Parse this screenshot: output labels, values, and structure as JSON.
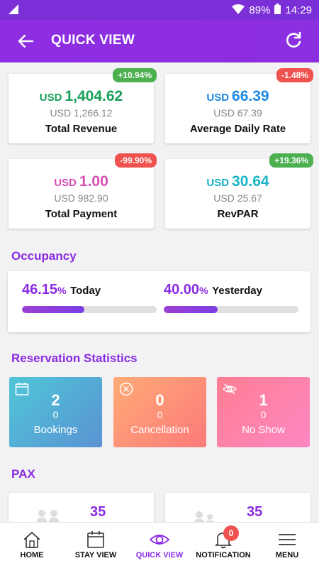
{
  "status_bar": {
    "battery": "89%",
    "time": "14:29"
  },
  "app_bar": {
    "title": "QUICK VIEW"
  },
  "kpis": [
    {
      "currency": "USD",
      "value": "1,404.62",
      "previous": "USD 1,266.12",
      "label": "Total Revenue",
      "change": "+10.94%",
      "trend": "pos",
      "color": "#1aa05a"
    },
    {
      "currency": "USD",
      "value": "66.39",
      "previous": "USD 67.39",
      "label": "Average Daily Rate",
      "change": "-1.48%",
      "trend": "neg",
      "color": "#1e88e5"
    },
    {
      "currency": "USD",
      "value": "1.00",
      "previous": "USD 982.90",
      "label": "Total Payment",
      "change": "-99.90%",
      "trend": "neg",
      "color": "#d64fb2"
    },
    {
      "currency": "USD",
      "value": "30.64",
      "previous": "USD 25.67",
      "label": "RevPAR",
      "change": "+19.36%",
      "trend": "pos",
      "color": "#17b3c6"
    }
  ],
  "occupancy": {
    "title": "Occupancy",
    "today": {
      "value": "46.15",
      "unit": "%",
      "label": "Today",
      "fraction": 0.4615
    },
    "yesterday": {
      "value": "40.00",
      "unit": "%",
      "label": "Yesterday",
      "fraction": 0.4
    }
  },
  "reservation": {
    "title": "Reservation Statistics",
    "tiles": [
      {
        "count": "2",
        "sub": "0",
        "label": "Bookings",
        "icon": "calendar-icon"
      },
      {
        "count": "0",
        "sub": "0",
        "label": "Cancellation",
        "icon": "close-circle-icon"
      },
      {
        "count": "1",
        "sub": "0",
        "label": "No Show",
        "icon": "eye-off-icon"
      }
    ]
  },
  "pax": {
    "title": "PAX",
    "cards": [
      {
        "value": "35"
      },
      {
        "value": "35"
      }
    ]
  },
  "nav": {
    "items": [
      {
        "label": "HOME",
        "icon": "home-icon"
      },
      {
        "label": "STAY VIEW",
        "icon": "calendar-icon"
      },
      {
        "label": "QUICK VIEW",
        "icon": "eye-icon"
      },
      {
        "label": "NOTIFICATION",
        "icon": "bell-icon",
        "badge": "0"
      },
      {
        "label": "MENU",
        "icon": "menu-icon"
      }
    ]
  },
  "colors": {
    "primary": "#8a2be2",
    "positive": "#4caf50",
    "negative": "#ef5350"
  }
}
